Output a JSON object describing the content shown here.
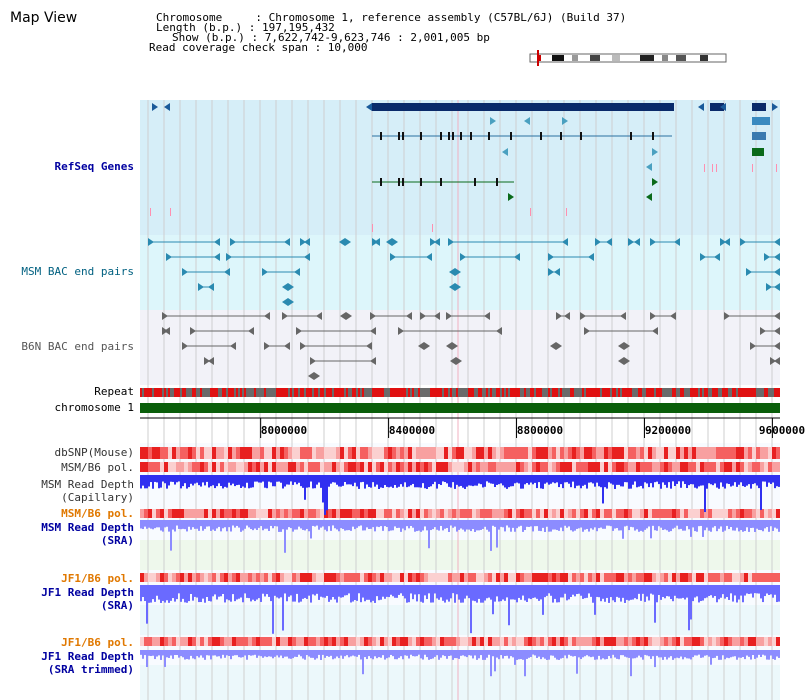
{
  "title": "Map View",
  "info": {
    "line1": "Chromosome     : Chromosome 1, reference assembly (C57BL/6J) (Build 37)",
    "line2": "Length (b.p.) : 197,195,432",
    "line3": "Show (b.p.) : 7,622,742-9,623,746 : 2,001,005 bp",
    "line4": "Read coverage check span : 10,000"
  },
  "tracks": {
    "refseq": "RefSeq Genes",
    "msm_bac": "MSM BAC end pairs",
    "b6n_bac": "B6N BAC end pairs",
    "repeat": "Repeat",
    "chromosome": "chromosome 1",
    "dbsnp": "dbSNP(Mouse)",
    "msmb6_pol": "MSM/B6 pol.",
    "msm_rd_cap": "MSM Read Depth\n(Capillary)",
    "msmb6_pol2": "MSM/B6 pol.",
    "msm_rd_sra": "MSM Read Depth\n(SRA)",
    "jf1b6_pol": "JF1/B6 pol.",
    "jf1_rd_sra": "JF1 Read Depth\n(SRA)",
    "jf1b6_pol2": "JF1/B6 pol.",
    "jf1_rd_trim": "JF1 Read Depth\n(SRA trimmed)"
  },
  "axis": {
    "start": 7622742,
    "end": 9623746,
    "ticks": [
      "8000000",
      "8400000",
      "8800000",
      "9200000",
      "9600000"
    ]
  },
  "colors": {
    "refseq_bg": "#d6eef8",
    "msm_bac_bg": "#ddf6fb",
    "b6n_bac_bg": "#f2f2f8",
    "repeat": "#e01010",
    "chromosome": "#0a5e0a",
    "refseq_label": "#0000a0",
    "msm_label": "#006080",
    "b6n_label": "#555555",
    "pol_label": "#e07800",
    "depth_label": "#0000a0",
    "depth_bar": "#6060ff"
  }
}
